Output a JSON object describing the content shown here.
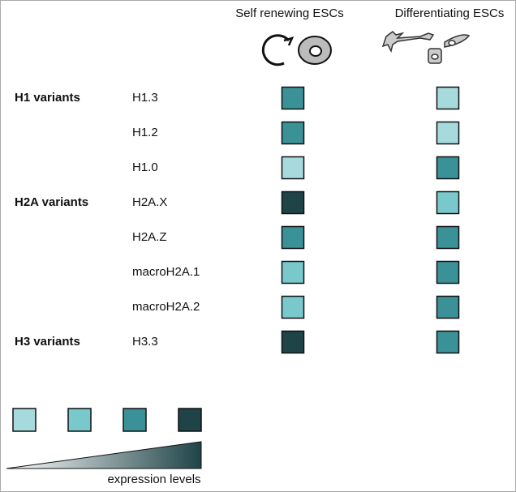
{
  "columns": [
    "Self renewing ESCs",
    "Differentiating ESCs"
  ],
  "groups": [
    {
      "name": "H1 variants",
      "rows": [
        {
          "label": "H1.3",
          "colors": [
            "#3a9197",
            "#a6dadd"
          ]
        },
        {
          "label": "H1.2",
          "colors": [
            "#3a9197",
            "#a6dadd"
          ]
        },
        {
          "label": "H1.0",
          "colors": [
            "#a6dadd",
            "#3a9197"
          ]
        }
      ]
    },
    {
      "name": "H2A variants",
      "rows": [
        {
          "label": "H2A.X",
          "colors": [
            "#1f4448",
            "#78c8cc"
          ]
        },
        {
          "label": "H2A.Z",
          "colors": [
            "#3a9197",
            "#3a9197"
          ]
        },
        {
          "label": "macroH2A.1",
          "colors": [
            "#78c8cc",
            "#3a9197"
          ]
        },
        {
          "label": "macroH2A.2",
          "colors": [
            "#78c8cc",
            "#3a9197"
          ]
        }
      ]
    },
    {
      "name": "H3 variants",
      "rows": [
        {
          "label": "H3.3",
          "colors": [
            "#1f4448",
            "#3a9197"
          ]
        }
      ]
    }
  ],
  "legend": {
    "colors": [
      "#a6dadd",
      "#78c8cc",
      "#3a9197",
      "#1f4448"
    ],
    "label": "expression levels"
  }
}
